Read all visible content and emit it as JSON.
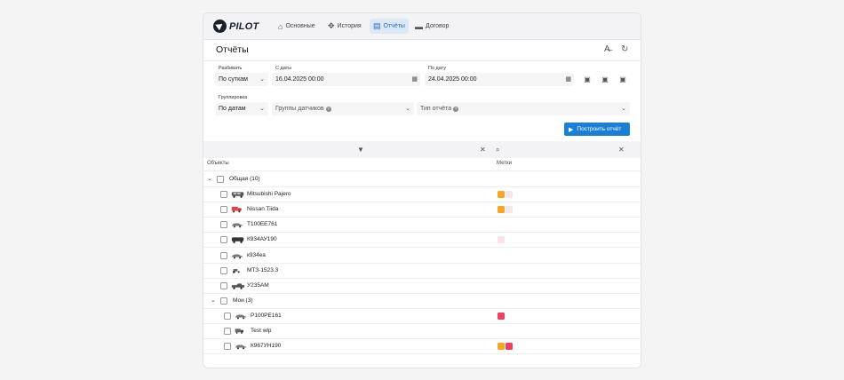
{
  "app": {
    "logo_text": "PILOT"
  },
  "nav": [
    {
      "label": "Основные",
      "icon": "home-icon",
      "active": false
    },
    {
      "label": "История",
      "icon": "route-icon",
      "active": false
    },
    {
      "label": "Отчёты",
      "icon": "report-icon",
      "active": true
    },
    {
      "label": "Договор",
      "icon": "wallet-icon",
      "active": false
    }
  ],
  "page": {
    "title": "Отчёты"
  },
  "form": {
    "split_label": "Разбивать",
    "split_value": "По суткам",
    "from_label": "С даты",
    "from_value": "16.04.2025 00:00",
    "to_label": "По дату",
    "to_value": "24.04.2025 00:00",
    "group_label": "Группировка",
    "group_value": "По датам",
    "sensor_groups_placeholder": "Группы датчиков",
    "report_type_placeholder": "Тип отчёта",
    "build_label": "Построить отчёт"
  },
  "table": {
    "col_objects": "Объекты",
    "col_tags": "Метки",
    "groups": [
      {
        "label": "Общая (10)",
        "items": [
          {
            "name": "Mitsubishi Pajero",
            "vehicle": "suv",
            "tags": [
              "#f5a623",
              "#fbe3ea"
            ]
          },
          {
            "name": "Nissan Tiida",
            "vehicle": "red-truck",
            "tags": [
              "#f5a623",
              "#fbe3ea"
            ]
          },
          {
            "name": "Т100ЕЕ761",
            "vehicle": "sedan",
            "tags": []
          },
          {
            "name": "К934АУ190",
            "vehicle": "van",
            "tags": [
              "#fbe3ea"
            ]
          },
          {
            "name": "к934еа",
            "vehicle": "sedan",
            "tags": []
          },
          {
            "name": "МТЗ-1523.3",
            "vehicle": "tractor",
            "tags": []
          },
          {
            "name": "У235АМ",
            "vehicle": "pickup",
            "tags": []
          }
        ]
      },
      {
        "label": "Мои (3)",
        "items": [
          {
            "name": "Р100РЕ161",
            "vehicle": "sedan",
            "tags": [
              "#f0415a"
            ]
          },
          {
            "name": "Test wlp",
            "vehicle": "truck",
            "tags": []
          },
          {
            "name": "К967УН190",
            "vehicle": "sedan",
            "tags": [
              "#f5a623",
              "#f0415a"
            ]
          }
        ]
      }
    ]
  }
}
